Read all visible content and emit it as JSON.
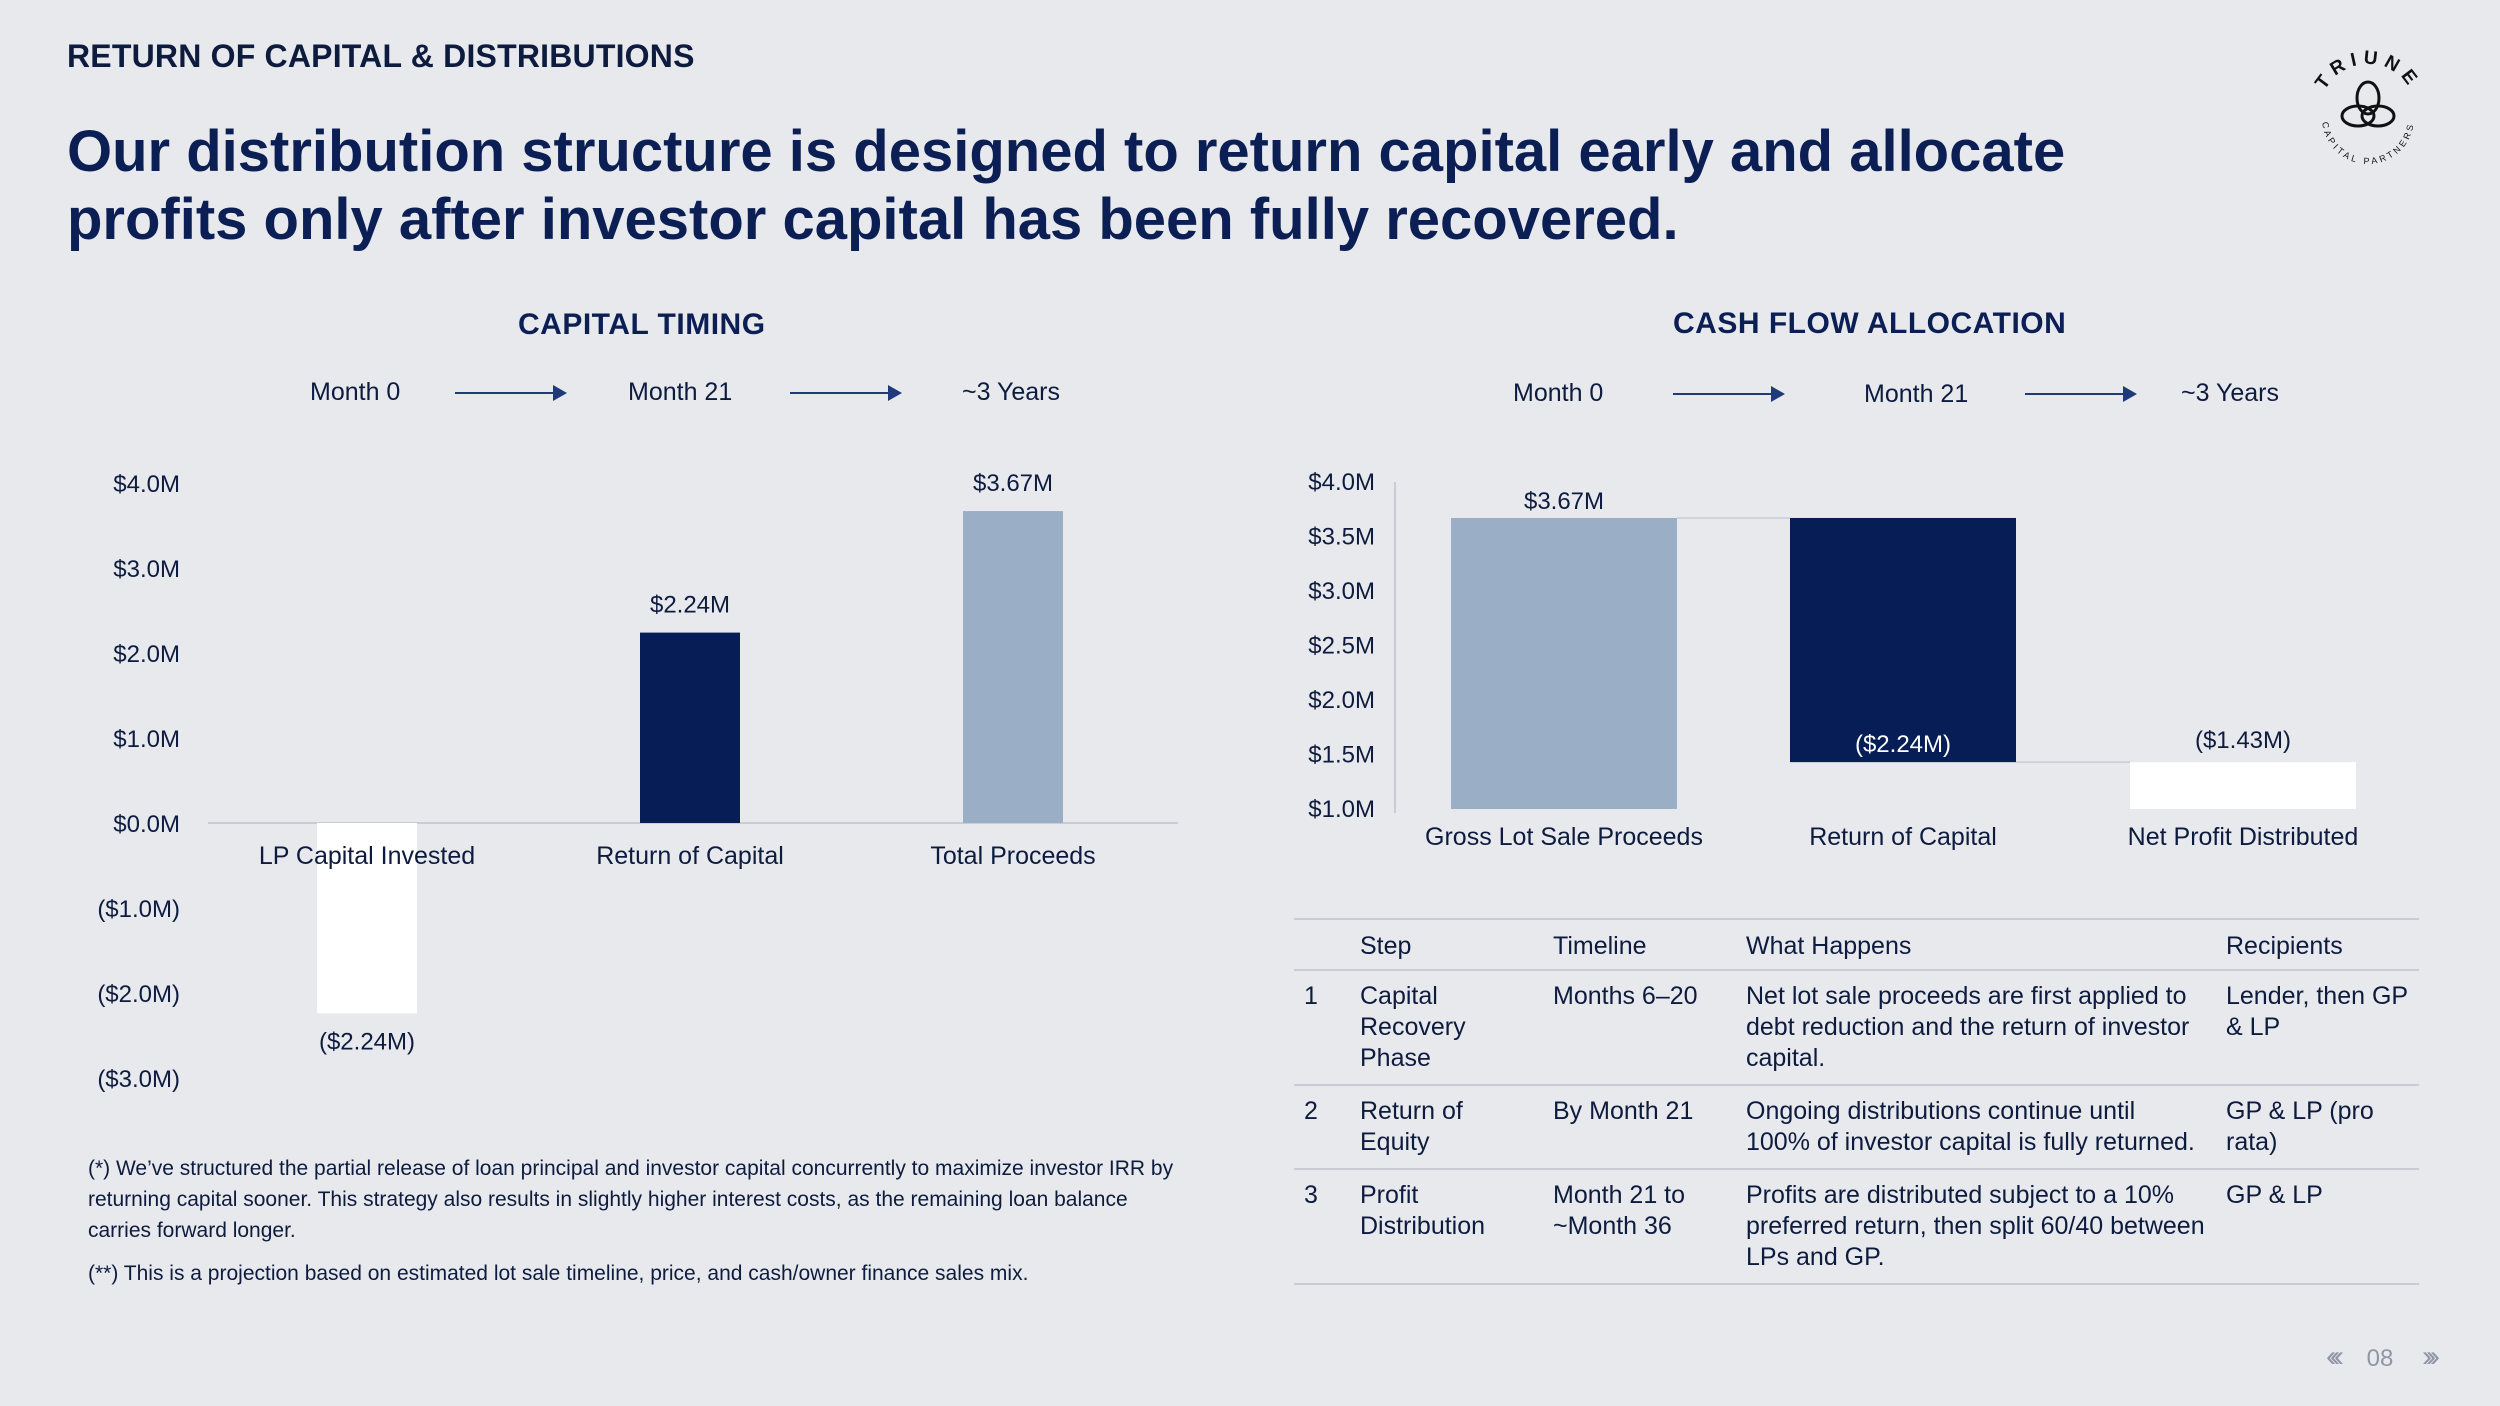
{
  "header": {
    "section_title": "RETURN OF CAPITAL & DISTRIBUTIONS",
    "headline_line1": "Our distribution structure is designed to return capital early and allocate",
    "headline_line2": "profits only after investor capital has been fully recovered."
  },
  "logo": {
    "text": "TRIUNE",
    "subtext": "CAPITAL PARTNERS",
    "icon": "triune-knot-icon"
  },
  "colors": {
    "navy": "#061d55",
    "light_blue": "#9aafc6",
    "white": "#ffffff",
    "background": "#e8e9ed"
  },
  "left_chart": {
    "title": "CAPITAL TIMING",
    "timeline": [
      "Month 0",
      "Month 21",
      "~3 Years"
    ]
  },
  "right_chart": {
    "title": "CASH FLOW ALLOCATION",
    "timeline": [
      "Month 0",
      "Month 21",
      "~3 Years"
    ]
  },
  "chart_data": [
    {
      "type": "bar",
      "title": "CAPITAL TIMING",
      "categories": [
        "LP Capital Invested",
        "Return of Capital",
        "Total Proceeds"
      ],
      "values": [
        -2.24,
        2.24,
        3.67
      ],
      "data_labels": [
        "($2.24M)",
        "$2.24M",
        "$3.67M"
      ],
      "bar_colors": [
        "#ffffff",
        "#061d55",
        "#9aafc6"
      ],
      "yticks": [
        "$4.0M",
        "$3.0M",
        "$2.0M",
        "$1.0M",
        "$0.0M",
        "($1.0M)",
        "($2.0M)",
        "($3.0M)"
      ],
      "ylim": [
        -3.0,
        4.0
      ],
      "units": "$M"
    },
    {
      "type": "bar",
      "subtype": "waterfall",
      "title": "CASH FLOW ALLOCATION",
      "categories": [
        "Gross Lot Sale Proceeds",
        "Return of Capital",
        "Net Profit Distributed"
      ],
      "values": [
        3.67,
        -2.24,
        -1.43
      ],
      "data_labels": [
        "$3.67M",
        "($2.24M)",
        "($1.43M)"
      ],
      "bar_colors": [
        "#9aafc6",
        "#061d55",
        "#ffffff"
      ],
      "yticks": [
        "$4.0M",
        "$3.5M",
        "$3.0M",
        "$2.5M",
        "$2.0M",
        "$1.5M",
        "$1.0M"
      ],
      "ylim": [
        1.0,
        4.0
      ],
      "units": "$M"
    }
  ],
  "table": {
    "headers": [
      "",
      "Step",
      "Timeline",
      "What Happens",
      "Recipients"
    ],
    "rows": [
      [
        "1",
        "Capital Recovery Phase",
        "Months 6–20",
        "Net lot sale proceeds are first applied to debt reduction and the return of investor capital.",
        "Lender, then GP & LP"
      ],
      [
        "2",
        "Return of Equity",
        "By Month 21",
        "Ongoing distributions continue until 100% of investor capital is fully returned.",
        "GP & LP (pro rata)"
      ],
      [
        "3",
        "Profit Distribution",
        "Month 21 to ~Month 36",
        "Profits are distributed subject to a 10% preferred return, then split 60/40 between LPs and GP.",
        "GP & LP"
      ]
    ]
  },
  "footnotes": {
    "note1": "(*) We’ve structured the partial release of loan principal and investor capital concurrently to maximize investor IRR by returning capital sooner. This strategy also results in slightly higher interest costs, as the remaining loan balance carries forward longer.",
    "note2": "(**) This is a projection based on estimated lot sale timeline, price, and cash/owner finance sales mix."
  },
  "pager": {
    "page_number": "08",
    "prev_icon": "chevron-double-left-icon",
    "next_icon": "chevron-double-right-icon"
  }
}
